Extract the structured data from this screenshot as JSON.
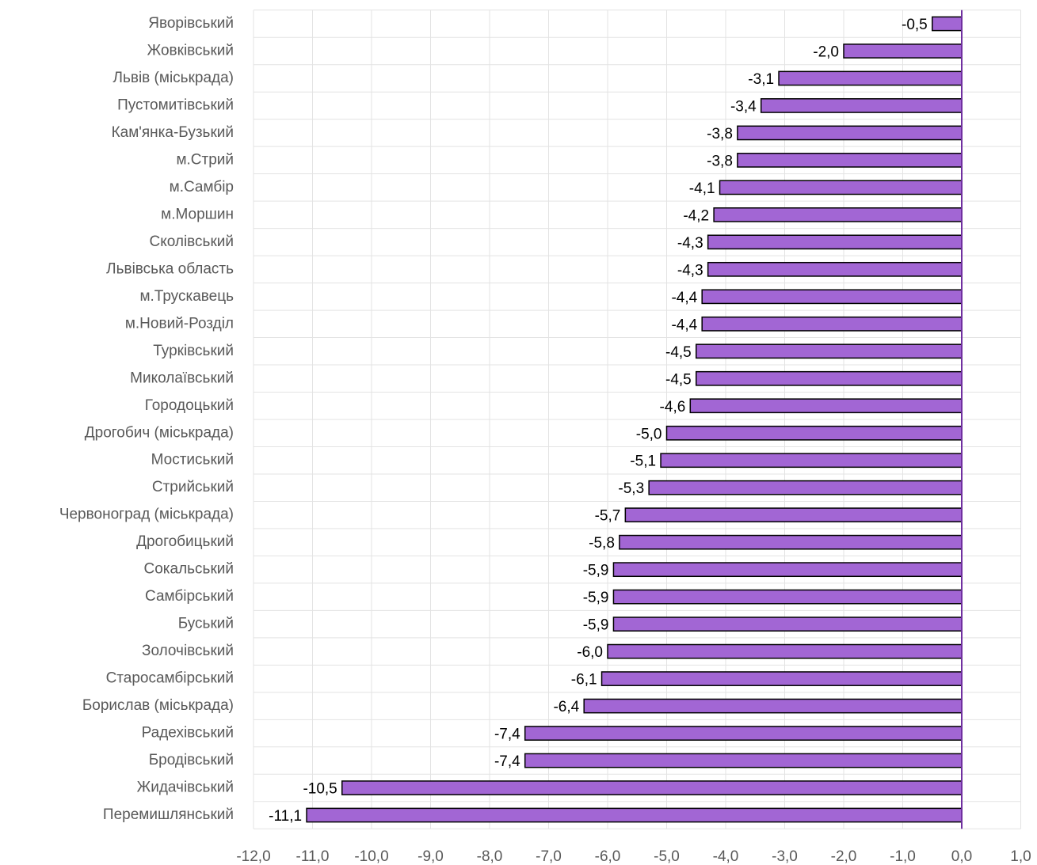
{
  "chart_data": {
    "type": "barh",
    "categories": [
      "Яворівський",
      "Жовківський",
      "Львів (міськрада)",
      "Пустомитівський",
      "Кам'янка-Бузький",
      "м.Стрий",
      "м.Самбір",
      "м.Моршин",
      "Сколівський",
      "Львівська область",
      "м.Трускавець",
      "м.Новий-Розділ",
      "Турківський",
      "Миколаївський",
      "Городоцький",
      "Дрогобич (міськрада)",
      "Мостиський",
      "Стрийський",
      "Червоноград (міськрада)",
      "Дрогобицький",
      "Сокальський",
      "Самбірський",
      "Буський",
      "Золочівський",
      "Старосамбірський",
      "Борислав (міськрада)",
      "Радехівський",
      "Бродівський",
      "Жидачівський",
      "Перемишлянський"
    ],
    "values": [
      -0.5,
      -2.0,
      -3.1,
      -3.4,
      -3.8,
      -3.8,
      -4.1,
      -4.2,
      -4.3,
      -4.3,
      -4.4,
      -4.4,
      -4.5,
      -4.5,
      -4.6,
      -5.0,
      -5.1,
      -5.3,
      -5.7,
      -5.8,
      -5.9,
      -5.9,
      -5.9,
      -6.0,
      -6.1,
      -6.4,
      -7.4,
      -7.4,
      -10.5,
      -11.1
    ],
    "value_labels": [
      "-0,5",
      "-2,0",
      "-3,1",
      "-3,4",
      "-3,8",
      "-3,8",
      "-4,1",
      "-4,2",
      "-4,3",
      "-4,3",
      "-4,4",
      "-4,4",
      "-4,5",
      "-4,5",
      "-4,6",
      "-5,0",
      "-5,1",
      "-5,3",
      "-5,7",
      "-5,8",
      "-5,9",
      "-5,9",
      "-5,9",
      "-6,0",
      "-6,1",
      "-6,4",
      "-7,4",
      "-7,4",
      "-10,5",
      "-11,1"
    ],
    "color": "#a266d4",
    "xlim": [
      -12,
      1
    ],
    "xticks": [
      {
        "value": -12,
        "label": "-12,0"
      },
      {
        "value": -11,
        "label": "-11,0"
      },
      {
        "value": -10,
        "label": "-10,0"
      },
      {
        "value": -9,
        "label": "-9,0"
      },
      {
        "value": -8,
        "label": "-8,0"
      },
      {
        "value": -7,
        "label": "-7,0"
      },
      {
        "value": -6,
        "label": "-6,0"
      },
      {
        "value": -5,
        "label": "-5,0"
      },
      {
        "value": -4,
        "label": "-4,0"
      },
      {
        "value": -3,
        "label": "-3,0"
      },
      {
        "value": -2,
        "label": "-2,0"
      },
      {
        "value": -1,
        "label": "-1,0"
      },
      {
        "value": 0,
        "label": "0,0"
      },
      {
        "value": 1,
        "label": "1,0"
      }
    ],
    "grid": true
  }
}
